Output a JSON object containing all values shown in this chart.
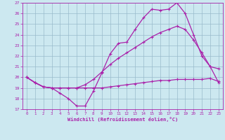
{
  "background_color": "#cce8f0",
  "grid_color": "#99bbcc",
  "line_color": "#aa22aa",
  "xlabel": "Windchill (Refroidissement éolien,°C)",
  "xlim": [
    -0.5,
    23.5
  ],
  "ylim": [
    17,
    27
  ],
  "yticks": [
    17,
    18,
    19,
    20,
    21,
    22,
    23,
    24,
    25,
    26,
    27
  ],
  "xticks": [
    0,
    1,
    2,
    3,
    4,
    5,
    6,
    7,
    8,
    9,
    10,
    11,
    12,
    13,
    14,
    15,
    16,
    17,
    18,
    19,
    20,
    21,
    22,
    23
  ],
  "line1_x": [
    0,
    1,
    2,
    3,
    4,
    5,
    6,
    7,
    8,
    9,
    10,
    11,
    12,
    13,
    14,
    15,
    16,
    17,
    18,
    19,
    20,
    21,
    22,
    23
  ],
  "line1_y": [
    20.0,
    19.5,
    19.1,
    19.0,
    18.5,
    18.0,
    17.3,
    17.3,
    18.7,
    20.4,
    22.2,
    23.2,
    23.3,
    24.5,
    25.6,
    26.4,
    26.3,
    26.4,
    27.0,
    26.0,
    24.0,
    22.0,
    21.0,
    19.5
  ],
  "line2_x": [
    0,
    1,
    2,
    3,
    4,
    5,
    6,
    7,
    8,
    9,
    10,
    11,
    12,
    13,
    14,
    15,
    16,
    17,
    18,
    19,
    20,
    21,
    22,
    23
  ],
  "line2_y": [
    20.0,
    19.5,
    19.1,
    19.0,
    19.0,
    19.0,
    19.0,
    19.0,
    19.0,
    19.0,
    19.1,
    19.2,
    19.3,
    19.4,
    19.5,
    19.6,
    19.7,
    19.7,
    19.8,
    19.8,
    19.8,
    19.8,
    19.9,
    19.6
  ],
  "line3_x": [
    0,
    1,
    2,
    3,
    4,
    5,
    6,
    7,
    8,
    9,
    10,
    11,
    12,
    13,
    14,
    15,
    16,
    17,
    18,
    19,
    20,
    21,
    22,
    23
  ],
  "line3_y": [
    20.0,
    19.5,
    19.1,
    19.0,
    19.0,
    19.0,
    19.0,
    19.3,
    19.8,
    20.5,
    21.2,
    21.8,
    22.3,
    22.8,
    23.3,
    23.8,
    24.2,
    24.5,
    24.8,
    24.5,
    23.5,
    22.3,
    21.0,
    20.8
  ]
}
